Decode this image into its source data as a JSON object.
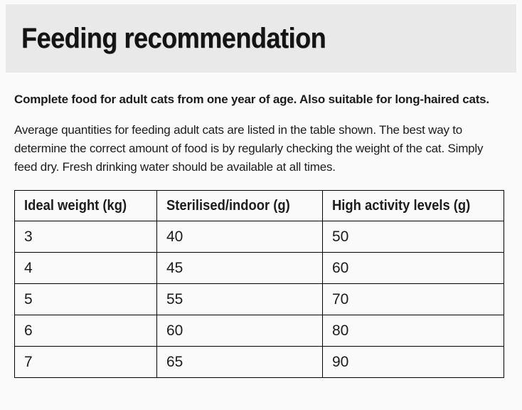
{
  "header": {
    "title": "Feeding recommendation"
  },
  "intro": {
    "bold_text": "Complete food for adult cats from one year of age. Also suitable for long-haired cats.",
    "body_text": "Average quantities for feeding adult cats are listed in the table shown. The best way to determine the correct amount of food is by regularly checking the weight of the cat. Simply feed dry. Fresh drinking water should be available at all times."
  },
  "table": {
    "headers": [
      "Ideal weight (kg)",
      "Sterilised/indoor (g)",
      "High activity levels (g)"
    ],
    "rows": [
      [
        "3",
        "40",
        "50"
      ],
      [
        "4",
        "45",
        "60"
      ],
      [
        "5",
        "55",
        "70"
      ],
      [
        "6",
        "60",
        "80"
      ],
      [
        "7",
        "65",
        "90"
      ]
    ]
  },
  "colors": {
    "band_bg": "#e9e9e9",
    "page_bg": "#fafafa",
    "text": "#1c1c1c",
    "table_border": "#000000"
  }
}
